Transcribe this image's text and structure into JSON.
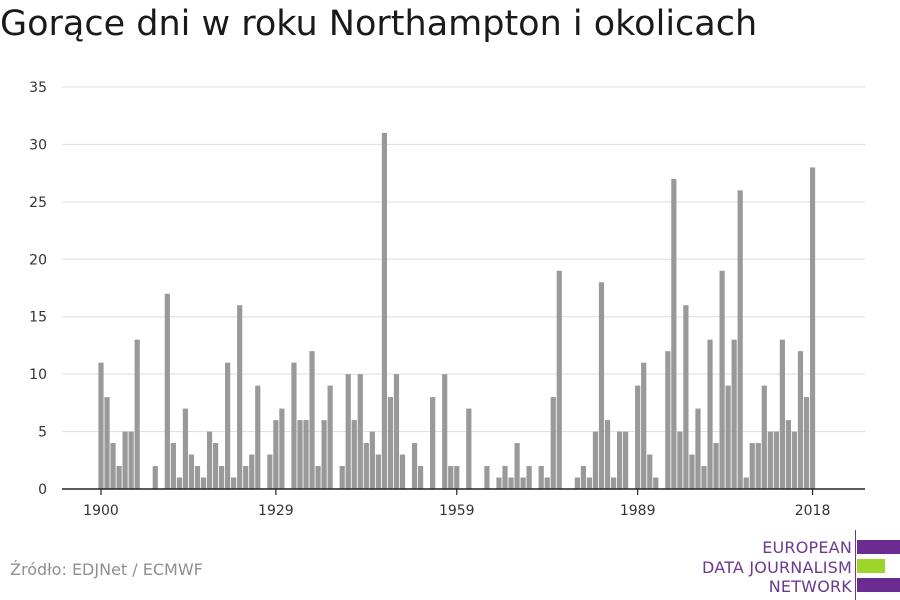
{
  "title": "Gorące dni w roku Northampton i okolicach",
  "source": "Źródło: EDJNet / ECMWF",
  "logo": {
    "lines": [
      "EUROPEAN",
      "DATA JOURNALISM",
      "NETWORK"
    ],
    "colors": {
      "text": "#6b3a8f",
      "bar_purple": "#6b2c91",
      "bar_green": "#9ed52a"
    }
  },
  "chart_data": {
    "type": "bar",
    "title": "Gorące dni w roku Northampton i okolicach",
    "xlabel": "",
    "ylabel": "",
    "x_start_year": 1900,
    "x_tick_labels": [
      "1900",
      "1929",
      "1959",
      "1989",
      "2018"
    ],
    "y_ticks": [
      0,
      5,
      10,
      15,
      20,
      25,
      30,
      35
    ],
    "ylim": [
      0,
      35
    ],
    "grid": true,
    "bar_color": "#999999",
    "values": [
      11,
      8,
      4,
      2,
      5,
      5,
      13,
      0,
      0,
      2,
      0,
      17,
      4,
      1,
      7,
      3,
      2,
      1,
      5,
      4,
      2,
      11,
      1,
      16,
      2,
      3,
      9,
      0,
      3,
      6,
      7,
      0,
      11,
      6,
      6,
      12,
      2,
      6,
      9,
      0,
      2,
      10,
      6,
      10,
      4,
      5,
      3,
      31,
      8,
      10,
      3,
      0,
      4,
      2,
      0,
      8,
      0,
      10,
      2,
      2,
      0,
      7,
      0,
      0,
      2,
      0,
      1,
      2,
      1,
      4,
      1,
      2,
      0,
      2,
      1,
      8,
      19,
      0,
      0,
      1,
      2,
      1,
      5,
      18,
      6,
      1,
      5,
      5,
      0,
      9,
      11,
      3,
      1,
      0,
      12,
      27,
      5,
      16,
      3,
      7,
      2,
      13,
      4,
      19,
      9,
      13,
      26,
      1,
      4,
      4,
      9,
      5,
      5,
      13,
      6,
      5,
      12,
      8,
      28
    ]
  }
}
